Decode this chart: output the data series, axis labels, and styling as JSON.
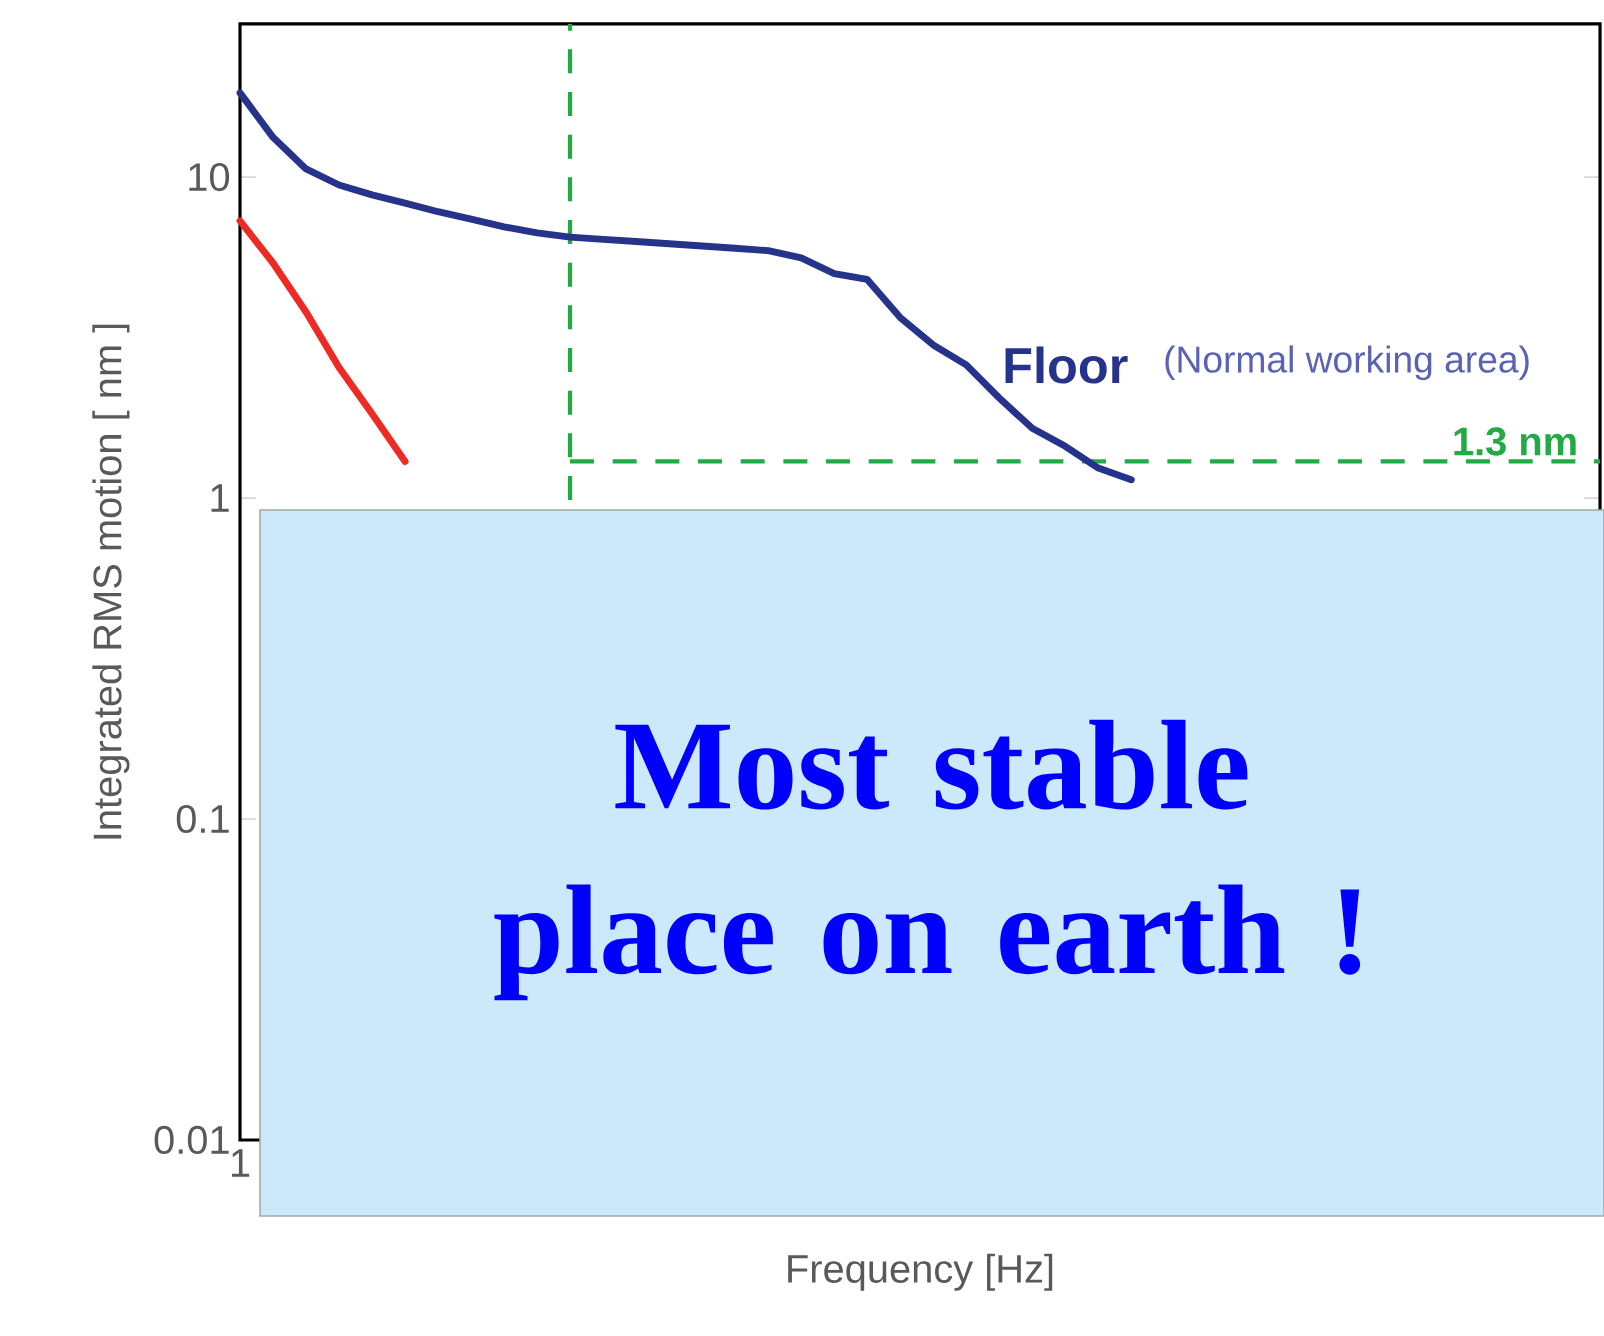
{
  "chart_data": {
    "type": "line",
    "log": "y",
    "grid": false,
    "marker": "none",
    "line_style": "solid",
    "xlabel": "Frequency [Hz]",
    "ylabel": "Integrated RMS motion [ nm ]",
    "ylim": [
      0.01,
      30
    ],
    "yticks": [
      {
        "value": 0.01,
        "label": "0.01"
      },
      {
        "value": 0.1,
        "label": "0.1"
      },
      {
        "value": 1,
        "label": "1"
      },
      {
        "value": 10,
        "label": "10"
      }
    ],
    "categories": [
      "1",
      null,
      null,
      null,
      null,
      null,
      null,
      null,
      null,
      null,
      null,
      null,
      null,
      null,
      null,
      null,
      null,
      null,
      null,
      null,
      null,
      null,
      null,
      null,
      null,
      null,
      null,
      null,
      null,
      null,
      null,
      null,
      null,
      null,
      null,
      null,
      null,
      null,
      null,
      null,
      null,
      null
    ],
    "series": [
      {
        "name": "Floor",
        "color": "#26338a",
        "values": [
          18.3,
          13.3,
          10.6,
          9.45,
          8.8,
          8.3,
          7.8,
          7.4,
          7.0,
          6.7,
          6.5,
          6.4,
          6.3,
          6.2,
          6.1,
          6.0,
          5.9,
          5.6,
          5.0,
          4.8,
          3.65,
          3.0,
          2.6,
          2.05,
          1.65,
          1.45,
          1.24,
          1.14,
          null,
          null,
          null,
          null,
          null,
          null,
          null,
          null,
          null,
          null,
          null,
          null,
          null,
          null
        ]
      },
      {
        "color": "#ee2a24",
        "values": [
          7.3,
          5.4,
          3.8,
          2.55,
          1.83,
          1.3,
          null,
          null,
          null,
          null,
          null,
          null,
          null,
          null,
          null,
          null,
          null,
          null,
          null,
          null,
          null,
          null,
          null,
          null,
          null,
          null,
          null,
          null,
          null,
          null,
          null,
          null,
          null,
          null,
          null,
          null,
          null,
          null,
          null,
          null,
          null,
          null
        ]
      }
    ],
    "ref_lines": [
      {
        "axis": "y",
        "value": 1.3,
        "label": "1.3 nm",
        "color": "#22aa44",
        "line_style": "dashed"
      }
    ],
    "annotations": [
      "(Normal working area)",
      "Most stable place on earth !"
    ]
  }
}
